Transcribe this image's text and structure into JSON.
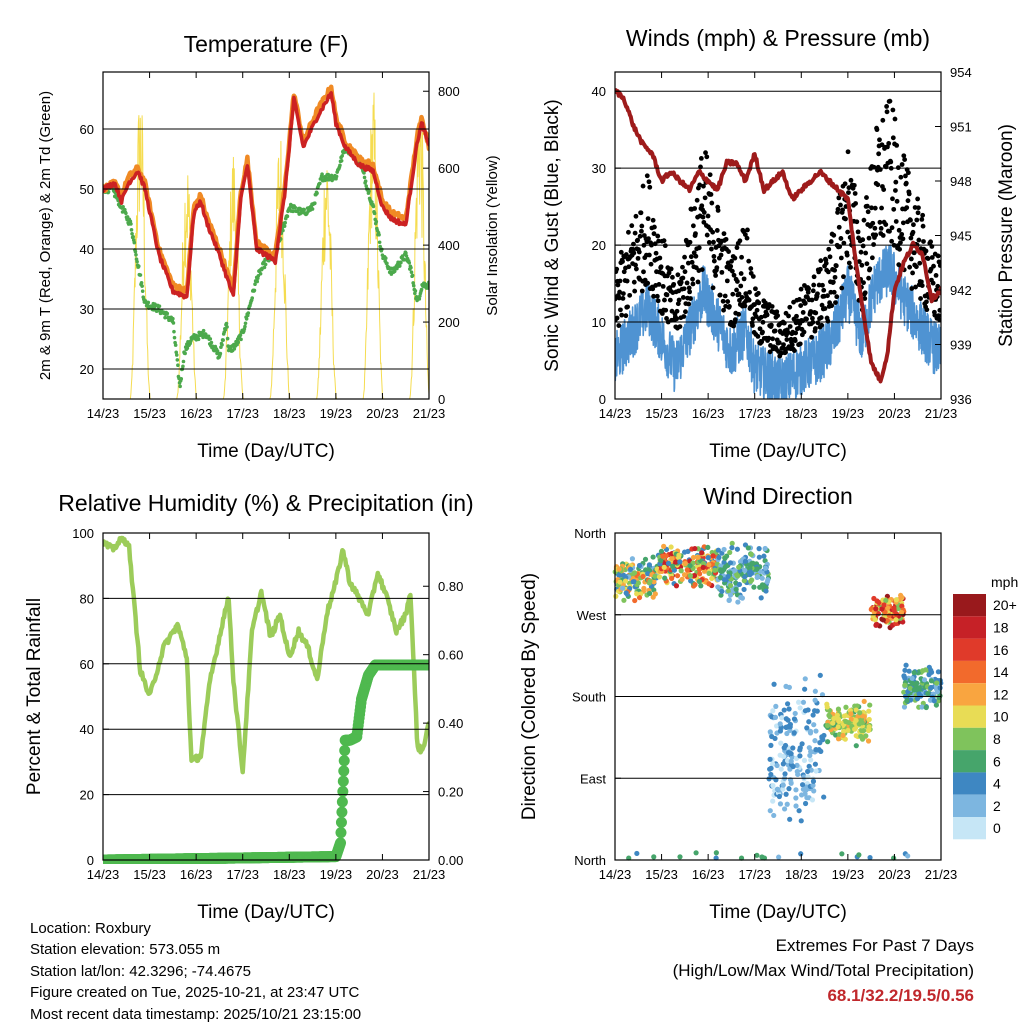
{
  "time_ticks": [
    "14/23",
    "15/23",
    "16/23",
    "17/23",
    "18/23",
    "19/23",
    "20/23",
    "21/23"
  ],
  "chart_data": [
    {
      "id": "temperature",
      "type": "line",
      "title": "Temperature (F)",
      "xlabel": "Time (Day/UTC)",
      "ylabel": "2m & 9m T (Red, Orange) & 2m Td (Green)",
      "y2label": "Solar Insolation (Yellow)",
      "xlim": [
        0,
        7
      ],
      "ylim": [
        15,
        69.5
      ],
      "y2lim": [
        0,
        850
      ],
      "yticks": [
        20,
        30,
        40,
        50,
        60
      ],
      "y2ticks": [
        0,
        200,
        400,
        600,
        800
      ],
      "grid": true,
      "series": [
        {
          "name": "9m T",
          "color": "#f08a24",
          "x": [
            0,
            0.25,
            0.4,
            0.55,
            0.75,
            0.9,
            1.2,
            1.5,
            1.8,
            1.95,
            2.1,
            2.2,
            2.5,
            2.8,
            2.95,
            3.1,
            3.3,
            3.7,
            3.9,
            4.1,
            4.3,
            4.6,
            4.9,
            5.0,
            5.2,
            5.5,
            5.8,
            6.0,
            6.2,
            6.5,
            6.75,
            6.85,
            7.0
          ],
          "values": [
            50,
            51,
            49,
            52,
            53.5,
            51,
            40,
            34,
            33,
            47,
            49,
            46,
            40,
            33,
            49,
            55,
            41,
            39,
            50,
            66,
            58,
            63,
            67,
            62,
            58,
            55,
            54,
            48,
            46,
            45,
            59,
            62,
            57
          ]
        },
        {
          "name": "2m T",
          "color": "#cc2222",
          "x": [
            0,
            0.25,
            0.4,
            0.55,
            0.75,
            0.9,
            1.2,
            1.5,
            1.8,
            1.95,
            2.1,
            2.2,
            2.5,
            2.8,
            2.95,
            3.1,
            3.3,
            3.7,
            3.9,
            4.1,
            4.3,
            4.6,
            4.9,
            5.0,
            5.2,
            5.5,
            5.8,
            6.0,
            6.2,
            6.5,
            6.75,
            6.85,
            7.0
          ],
          "values": [
            50,
            51,
            48,
            51,
            53,
            50,
            39,
            33,
            32,
            46,
            48,
            45,
            39,
            32,
            48,
            54,
            40,
            38,
            49,
            65,
            57,
            62,
            66,
            61,
            57,
            54,
            53,
            47,
            45,
            44,
            58,
            61,
            57
          ]
        },
        {
          "name": "2m Td",
          "color": "#4ca94c",
          "x": [
            0,
            0.2,
            0.4,
            0.6,
            0.9,
            1.2,
            1.5,
            1.65,
            1.75,
            1.9,
            2.2,
            2.5,
            2.65,
            2.7,
            2.85,
            3.0,
            3.3,
            3.5,
            3.7,
            4.0,
            4.3,
            4.5,
            4.7,
            5.0,
            5.2,
            5.5,
            5.8,
            6.0,
            6.2,
            6.5,
            6.6,
            6.75,
            6.85,
            7.0
          ],
          "values": [
            50,
            50,
            47,
            44,
            31,
            30,
            28,
            17,
            23,
            25,
            26,
            22,
            28,
            23,
            24,
            26,
            35,
            38,
            39,
            47,
            46,
            47,
            52,
            52,
            57,
            55,
            47,
            39,
            36,
            39,
            37,
            31,
            34,
            34
          ]
        },
        {
          "name": "Solar Insolation",
          "color": "#f5dc50",
          "axis": "y2",
          "days": [
            0.8,
            1.8,
            2.8,
            3.8,
            4.8,
            5.8,
            6.8
          ],
          "peaks": [
            830,
            650,
            670,
            720,
            690,
            830,
            840
          ]
        }
      ]
    },
    {
      "id": "winds",
      "type": "scatter",
      "title": "Winds (mph) & Pressure (mb)",
      "xlabel": "Time (Day/UTC)",
      "ylabel": "Sonic Wind & Gust (Blue, Black)",
      "y2label": "Station Pressure (Maroon)",
      "xlim": [
        0,
        7
      ],
      "ylim": [
        0,
        42.5
      ],
      "y2lim": [
        936,
        954
      ],
      "yticks": [
        0,
        10,
        20,
        30,
        40
      ],
      "y2ticks": [
        936,
        939,
        942,
        945,
        948,
        951,
        954
      ],
      "grid": true,
      "wind_profile": {
        "x": [
          0,
          0.3,
          0.7,
          1.0,
          1.3,
          1.6,
          1.9,
          2.2,
          2.5,
          2.8,
          3.0,
          3.3,
          3.6,
          4.0,
          4.3,
          4.6,
          4.8,
          5.0,
          5.3,
          5.6,
          5.9,
          6.2,
          6.5,
          6.8,
          7.0
        ],
        "values": [
          5,
          8,
          12,
          8,
          4,
          9,
          14,
          10,
          6,
          9,
          4,
          3,
          2,
          4,
          5,
          7,
          10,
          14,
          8,
          15,
          17,
          13,
          10,
          7,
          6
        ]
      },
      "series": [
        {
          "name": "Station Pressure",
          "color": "#9e1b1b",
          "axis": "y2",
          "x": [
            0,
            0.2,
            0.4,
            0.6,
            0.8,
            1.0,
            1.2,
            1.4,
            1.6,
            1.8,
            2.0,
            2.2,
            2.4,
            2.6,
            2.8,
            3.0,
            3.2,
            3.4,
            3.6,
            3.8,
            4.0,
            4.2,
            4.4,
            4.6,
            4.8,
            5.0,
            5.2,
            5.5,
            5.7,
            5.85,
            6.0,
            6.2,
            6.4,
            6.6,
            6.8,
            7.0
          ],
          "values": [
            953,
            952.5,
            951,
            950,
            949.5,
            948,
            948.5,
            948,
            947.5,
            948.5,
            948,
            947.5,
            949,
            949,
            948,
            949.5,
            947.5,
            948,
            948.5,
            947,
            947.5,
            948,
            948.5,
            948,
            947.5,
            947,
            943,
            938,
            937,
            938.5,
            942,
            943.5,
            944.5,
            944,
            941.5,
            942
          ]
        }
      ]
    },
    {
      "id": "humidity",
      "type": "line",
      "title": "Relative Humidity (%) & Precipitation (in)",
      "xlabel": "Time (Day/UTC)",
      "ylabel": "Percent & Total Rainfall",
      "xlim": [
        0,
        7
      ],
      "ylim": [
        0,
        100
      ],
      "y2lim": [
        0,
        0.9556
      ],
      "yticks": [
        0,
        20,
        40,
        60,
        80,
        100
      ],
      "y2ticks": [
        "0.00",
        "0.20",
        "0.40",
        "0.60",
        "0.80"
      ],
      "grid": true,
      "series": [
        {
          "name": "Relative Humidity",
          "color": "#9ccc5a",
          "x": [
            0,
            0.2,
            0.4,
            0.55,
            0.8,
            1.0,
            1.1,
            1.3,
            1.6,
            1.8,
            1.9,
            2.1,
            2.3,
            2.5,
            2.6,
            2.7,
            2.8,
            3.0,
            3.2,
            3.4,
            3.6,
            3.8,
            4.0,
            4.2,
            4.4,
            4.6,
            4.8,
            5.0,
            5.15,
            5.3,
            5.5,
            5.7,
            5.9,
            6.1,
            6.3,
            6.5,
            6.6,
            6.75,
            6.85,
            7.0
          ],
          "values": [
            97,
            95,
            98,
            97,
            58,
            50,
            55,
            65,
            72,
            62,
            30,
            32,
            55,
            68,
            75,
            80,
            55,
            27,
            70,
            82,
            68,
            75,
            62,
            70,
            65,
            55,
            75,
            85,
            95,
            85,
            80,
            75,
            88,
            80,
            70,
            75,
            82,
            35,
            33,
            42
          ]
        },
        {
          "name": "Total Precipitation",
          "color": "#4fb94f",
          "axis": "y2",
          "x": [
            0,
            5.0,
            5.1,
            5.15,
            5.2,
            5.3,
            5.45,
            5.55,
            5.7,
            5.85,
            6.0,
            7.0
          ],
          "values": [
            0,
            0.01,
            0.05,
            0.2,
            0.35,
            0.35,
            0.36,
            0.47,
            0.54,
            0.57,
            0.57,
            0.57
          ]
        }
      ]
    },
    {
      "id": "direction",
      "type": "scatter",
      "title": "Wind Direction",
      "xlabel": "Time (Day/UTC)",
      "ylabel": "Direction (Colored By Speed)",
      "xlim": [
        0,
        7
      ],
      "ylim": [
        0,
        360
      ],
      "yticks": [
        "North",
        "East",
        "South",
        "West",
        "North"
      ],
      "grid": true,
      "colorbar": {
        "title": "mph",
        "labels": [
          "20+",
          "18",
          "16",
          "14",
          "12",
          "10",
          "8",
          "6",
          "4",
          "2",
          "0"
        ],
        "colors": [
          "#99191c",
          "#c62127",
          "#e03a2a",
          "#f26a2c",
          "#f9a540",
          "#e8dc55",
          "#7fc35c",
          "#46a56b",
          "#3e87c2",
          "#7db6e0",
          "#c6e6f6"
        ]
      },
      "segments": [
        {
          "x0": 0.0,
          "x1": 0.9,
          "dir_center": 310,
          "spread": 25,
          "speed_min": 2,
          "speed_max": 14
        },
        {
          "x0": 0.9,
          "x1": 2.2,
          "dir_center": 325,
          "spread": 25,
          "speed_min": 4,
          "speed_max": 18
        },
        {
          "x0": 2.2,
          "x1": 3.3,
          "dir_center": 315,
          "spread": 35,
          "speed_min": 1,
          "speed_max": 8
        },
        {
          "x0": 3.3,
          "x1": 4.5,
          "dir_center": 120,
          "spread": 90,
          "speed_min": 0,
          "speed_max": 5
        },
        {
          "x0": 4.5,
          "x1": 5.5,
          "dir_center": 150,
          "spread": 25,
          "speed_min": 6,
          "speed_max": 12
        },
        {
          "x0": 5.5,
          "x1": 6.2,
          "dir_center": 275,
          "spread": 20,
          "speed_min": 8,
          "speed_max": 20
        },
        {
          "x0": 6.2,
          "x1": 7.0,
          "dir_center": 190,
          "spread": 25,
          "speed_min": 2,
          "speed_max": 8
        }
      ]
    }
  ],
  "info": {
    "location": "Location: Roxbury",
    "elevation": "Station elevation: 573.055 m",
    "latlon": "Station lat/lon: 42.3296; -74.4675",
    "created": "Figure created on Tue, 2025-10-21, at 23:47 UTC",
    "latest": "Most recent data timestamp: 2025/10/21 23:15:00"
  },
  "extremes": {
    "title": "Extremes For Past 7 Days",
    "subtitle": "(High/Low/Max Wind/Total Precipitation)",
    "values": "68.1/32.2/19.5/0.56"
  }
}
